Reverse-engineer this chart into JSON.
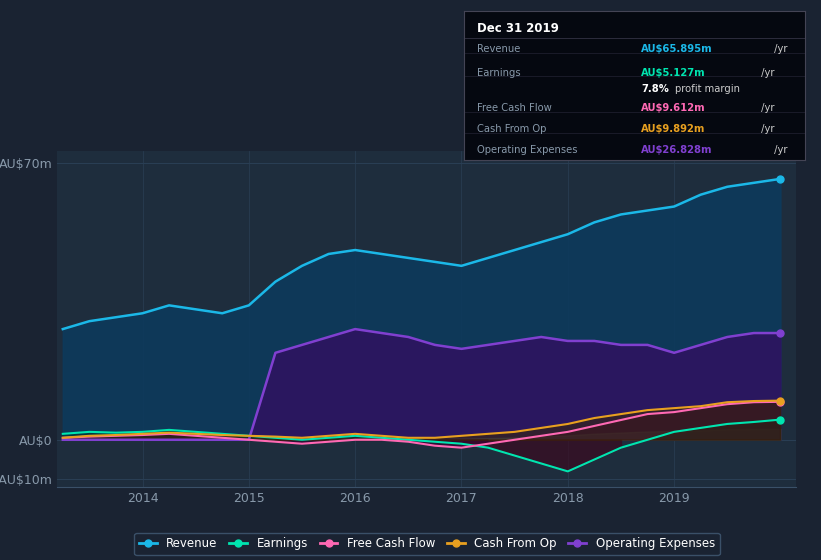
{
  "bg_color": "#1a2332",
  "plot_bg_color": "#1e2d3d",
  "grid_color": "#2a3f55",
  "title_box": {
    "date": "Dec 31 2019",
    "revenue": "AU$65.895m /yr",
    "earnings": "AU$5.127m /yr",
    "profit_margin": "7.8% profit margin",
    "free_cash_flow": "AU$9.612m /yr",
    "cash_from_op": "AU$9.892m /yr",
    "operating_expenses": "AU$26.828m /yr"
  },
  "x": [
    2013.25,
    2013.5,
    2013.75,
    2014.0,
    2014.25,
    2014.5,
    2014.75,
    2015.0,
    2015.25,
    2015.5,
    2015.75,
    2016.0,
    2016.25,
    2016.5,
    2016.75,
    2017.0,
    2017.25,
    2017.5,
    2017.75,
    2018.0,
    2018.25,
    2018.5,
    2018.75,
    2019.0,
    2019.25,
    2019.5,
    2019.75,
    2020.0
  ],
  "revenue": [
    28,
    30,
    31,
    32,
    34,
    33,
    32,
    34,
    40,
    44,
    47,
    48,
    47,
    46,
    45,
    44,
    46,
    48,
    50,
    52,
    55,
    57,
    58,
    59,
    62,
    64,
    65,
    66
  ],
  "operating_expenses": [
    0,
    0,
    0,
    0,
    0,
    0,
    0,
    0,
    22,
    24,
    26,
    28,
    27,
    26,
    24,
    23,
    24,
    25,
    26,
    25,
    25,
    24,
    24,
    22,
    24,
    26,
    27,
    27
  ],
  "earnings": [
    1.5,
    2.0,
    1.8,
    2.0,
    2.5,
    2.0,
    1.5,
    1.0,
    0.5,
    0.0,
    0.5,
    1.0,
    0.5,
    0.0,
    -0.5,
    -1.0,
    -2.0,
    -4.0,
    -6.0,
    -8.0,
    -5.0,
    -2.0,
    0.0,
    2.0,
    3.0,
    4.0,
    4.5,
    5.1
  ],
  "free_cash_flow": [
    0.5,
    0.8,
    1.0,
    1.2,
    1.5,
    1.0,
    0.5,
    0.0,
    -0.5,
    -1.0,
    -0.5,
    0.0,
    0.0,
    -0.5,
    -1.5,
    -2.0,
    -1.0,
    0.0,
    1.0,
    2.0,
    3.5,
    5.0,
    6.5,
    7.0,
    8.0,
    9.0,
    9.5,
    9.6
  ],
  "cash_from_op": [
    0.5,
    1.0,
    1.2,
    1.5,
    1.8,
    1.5,
    1.2,
    1.0,
    0.8,
    0.5,
    1.0,
    1.5,
    1.0,
    0.5,
    0.5,
    1.0,
    1.5,
    2.0,
    3.0,
    4.0,
    5.5,
    6.5,
    7.5,
    8.0,
    8.5,
    9.5,
    9.8,
    9.9
  ],
  "colors": {
    "revenue": "#1bb8e8",
    "earnings": "#00e5b0",
    "free_cash_flow": "#ff69b4",
    "cash_from_op": "#e8a020",
    "operating_expenses": "#8040d0"
  },
  "ylim": [
    -12,
    73
  ],
  "xlim": [
    2013.2,
    2020.15
  ],
  "yticks": [
    -10,
    0,
    70
  ],
  "ytick_labels": [
    "-AU$10m",
    "AU$0",
    "AU$70m"
  ],
  "xticks": [
    2014,
    2015,
    2016,
    2017,
    2018,
    2019
  ],
  "legend": [
    {
      "label": "Revenue",
      "color": "#1bb8e8"
    },
    {
      "label": "Earnings",
      "color": "#00e5b0"
    },
    {
      "label": "Free Cash Flow",
      "color": "#ff69b4"
    },
    {
      "label": "Cash From Op",
      "color": "#e8a020"
    },
    {
      "label": "Operating Expenses",
      "color": "#8040d0"
    }
  ]
}
